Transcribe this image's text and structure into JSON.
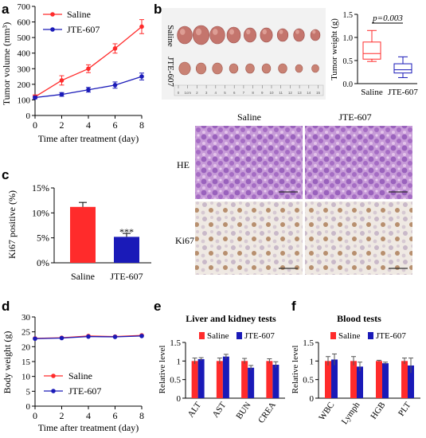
{
  "panels": {
    "a": "a",
    "b": "b",
    "c": "c",
    "d": "d",
    "e": "e",
    "f": "f"
  },
  "colors": {
    "saline": "#ff2b2b",
    "jte": "#1a1ab8",
    "histo_he": "#c49ad6",
    "histo_ki": "#eee7e0"
  },
  "chart_data": [
    {
      "id": "a",
      "type": "line",
      "xlabel": "Time after treatment (day)",
      "ylabel": "Tumor volume (mm³)",
      "x": [
        0,
        2,
        4,
        6,
        8
      ],
      "xticks": [
        "0",
        "2",
        "4",
        "6",
        "8"
      ],
      "yticks": [
        "0",
        "100",
        "200",
        "300",
        "400",
        "500",
        "600",
        "700"
      ],
      "xlim": [
        0,
        8
      ],
      "ylim": [
        0,
        700
      ],
      "legend": "top-left",
      "series": [
        {
          "name": "Saline",
          "color": "#ff2b2b",
          "values": [
            120,
            225,
            300,
            430,
            570
          ],
          "errors": [
            12,
            30,
            25,
            30,
            45
          ]
        },
        {
          "name": "JTE-607",
          "color": "#1a1ab8",
          "values": [
            115,
            135,
            165,
            195,
            250
          ],
          "errors": [
            8,
            12,
            15,
            20,
            22
          ]
        }
      ]
    },
    {
      "id": "b_weight",
      "type": "box",
      "ylabel": "Tumor weight (g)",
      "annotation": "p=0.003",
      "categories": [
        "Saline",
        "JTE-607"
      ],
      "yticks": [
        "0.0",
        "0.5",
        "1.0",
        "1.5"
      ],
      "ylim": [
        0,
        1.5
      ],
      "boxes": [
        {
          "name": "Saline",
          "color": "#ff2b2b",
          "min": 0.48,
          "q1": 0.53,
          "median": 0.65,
          "q3": 0.9,
          "max": 1.15
        },
        {
          "name": "JTE-607",
          "color": "#1a1ab8",
          "min": 0.13,
          "q1": 0.23,
          "median": 0.3,
          "q3": 0.43,
          "max": 0.58
        }
      ]
    },
    {
      "id": "c",
      "type": "bar",
      "ylabel": "Ki67 positive (%)",
      "categories": [
        "Saline",
        "JTE-607"
      ],
      "values": [
        11.2,
        5.2
      ],
      "errors": [
        0.9,
        0.7
      ],
      "colors": [
        "#ff2b2b",
        "#1a1ab8"
      ],
      "yticks": [
        "0%",
        "5%",
        "10%",
        "15%"
      ],
      "ylim": [
        0,
        15
      ],
      "annotation": "***"
    },
    {
      "id": "d",
      "type": "line",
      "xlabel": "Time after treatment (day)",
      "ylabel": "Body weight (g)",
      "x": [
        0,
        2,
        4,
        6,
        8
      ],
      "xticks": [
        "0",
        "2",
        "4",
        "6",
        "8"
      ],
      "yticks": [
        "0",
        "5",
        "10",
        "15",
        "20",
        "25",
        "30"
      ],
      "xlim": [
        0,
        8
      ],
      "ylim": [
        0,
        30
      ],
      "legend": "bottom-right",
      "series": [
        {
          "name": "Saline",
          "color": "#ff2b2b",
          "values": [
            22.8,
            23.0,
            23.6,
            23.4,
            23.8
          ]
        },
        {
          "name": "JTE-607",
          "color": "#1a1ab8",
          "values": [
            22.7,
            22.9,
            23.4,
            23.3,
            23.6
          ]
        }
      ]
    },
    {
      "id": "e",
      "type": "bar",
      "title": "Liver and kidney tests",
      "ylabel": "Relative level",
      "categories": [
        "ALT",
        "AST",
        "BUN",
        "CREA"
      ],
      "yticks": [
        "0",
        "0.5",
        "1",
        "1.5"
      ],
      "ylim": [
        0,
        1.5
      ],
      "legend": "top",
      "series": [
        {
          "name": "Saline",
          "color": "#ff2b2b",
          "values": [
            1.0,
            1.0,
            1.0,
            1.0
          ],
          "errors": [
            0.08,
            0.08,
            0.07,
            0.06
          ]
        },
        {
          "name": "JTE-607",
          "color": "#1a1ab8",
          "values": [
            1.05,
            1.12,
            0.82,
            0.9
          ],
          "errors": [
            0.04,
            0.06,
            0.06,
            0.08
          ]
        }
      ]
    },
    {
      "id": "f",
      "type": "bar",
      "title": "Blood tests",
      "ylabel": "Relative level",
      "categories": [
        "WBC",
        "Lymph",
        "HGB",
        "PLT"
      ],
      "yticks": [
        "0",
        "0.5",
        "1",
        "1.5"
      ],
      "ylim": [
        0,
        1.5
      ],
      "legend": "top",
      "series": [
        {
          "name": "Saline",
          "color": "#ff2b2b",
          "values": [
            1.0,
            1.0,
            1.0,
            1.0
          ],
          "errors": [
            0.12,
            0.12,
            0.02,
            0.08
          ]
        },
        {
          "name": "JTE-607",
          "color": "#1a1ab8",
          "values": [
            1.04,
            0.85,
            0.94,
            0.88
          ],
          "errors": [
            0.15,
            0.12,
            0.03,
            0.2
          ]
        }
      ]
    }
  ],
  "photo": {
    "labels": [
      "Saline",
      "JTE-607"
    ],
    "tumors_per_row": 9,
    "ruler_ticks": [
      "0",
      "1cm",
      "2",
      "3",
      "4",
      "5",
      "6",
      "7",
      "8",
      "9",
      "10",
      "11",
      "12",
      "13",
      "14",
      "15"
    ]
  },
  "histology": {
    "columns": [
      "Saline",
      "JTE-607"
    ],
    "rows": [
      "HE",
      "Ki67"
    ]
  }
}
